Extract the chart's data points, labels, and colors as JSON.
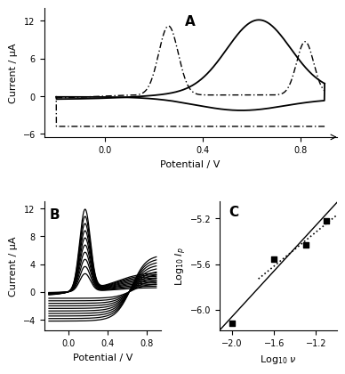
{
  "panel_A": {
    "label": "A",
    "xlabel": "Potential / V",
    "ylabel": "Current / μA",
    "xlim": [
      -0.25,
      0.95
    ],
    "ylim": [
      -6.5,
      14
    ],
    "yticks": [
      -6,
      0,
      6,
      12
    ],
    "xticks": [
      0.0,
      0.4,
      0.8
    ]
  },
  "panel_B": {
    "label": "B",
    "xlabel": "Potential / V",
    "ylabel": "Current / μA",
    "xlim": [
      -0.25,
      0.95
    ],
    "ylim": [
      -5.5,
      13
    ],
    "yticks": [
      -4,
      0,
      4,
      8,
      12
    ],
    "xticks": [
      0.0,
      0.4,
      0.8
    ],
    "num_scans": 10
  },
  "panel_C": {
    "label": "C",
    "xlabel": "Log$_{10}$ $\\nu$",
    "ylabel": "Log$_{10}$ $I_p$",
    "xlim": [
      -2.12,
      -1.0
    ],
    "ylim": [
      -6.18,
      -5.05
    ],
    "yticks": [
      -6.0,
      -5.6,
      -5.2
    ],
    "xticks": [
      -2.0,
      -1.6,
      -1.2
    ],
    "data_x": [
      -2.0,
      -1.6,
      -1.3,
      -1.1
    ],
    "data_y": [
      -6.12,
      -5.56,
      -5.43,
      -5.22
    ],
    "solid_line_x": [
      -2.12,
      -1.0
    ],
    "solid_line_y": [
      -6.18,
      -5.06
    ],
    "dotted_line_x": [
      -1.75,
      -1.0
    ],
    "dotted_line_y": [
      -5.73,
      -5.17
    ]
  },
  "background": "white",
  "font_size": 8
}
